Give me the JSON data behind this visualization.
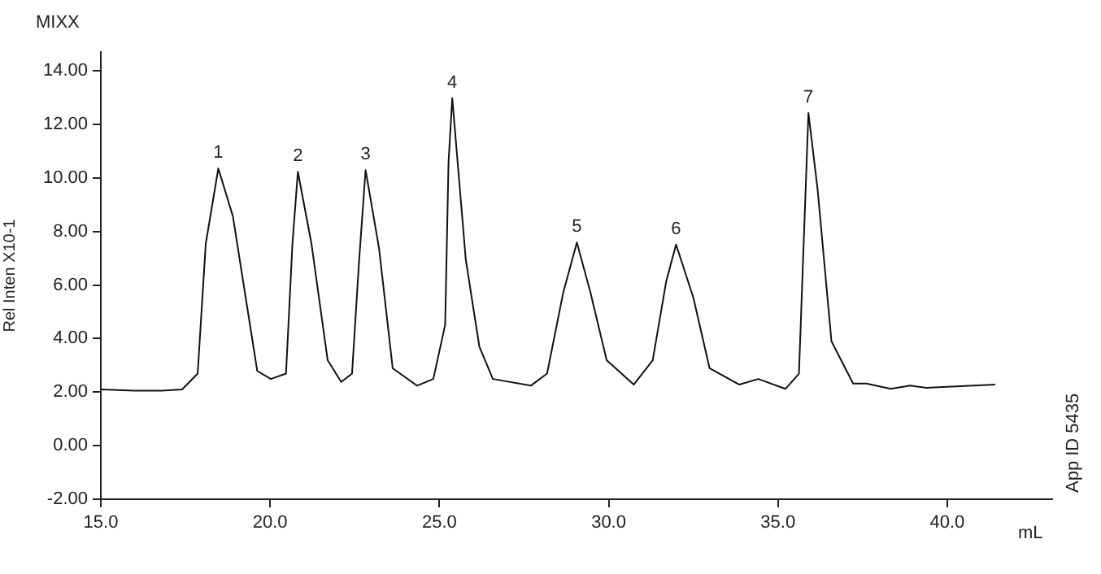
{
  "chart_data": {
    "type": "line",
    "xlabel": "mL",
    "ylabel": "Rel Inten X10-1",
    "marker": "none",
    "line_style": "solid",
    "grid": false,
    "legend": false,
    "xlim": [
      15,
      43.1
    ],
    "ylim": [
      -2,
      14.7
    ],
    "xticks": [
      {
        "value": 15,
        "label": "15.0"
      },
      {
        "value": 20,
        "label": "20.0"
      },
      {
        "value": 25,
        "label": "25.0"
      },
      {
        "value": 30,
        "label": "30.0"
      },
      {
        "value": 35,
        "label": "35.0"
      },
      {
        "value": 40,
        "label": "40.0"
      }
    ],
    "yticks": [
      {
        "value": -2,
        "label": "-2.00"
      },
      {
        "value": 0,
        "label": "0.00"
      },
      {
        "value": 2,
        "label": "2.00"
      },
      {
        "value": 4,
        "label": "4.00"
      },
      {
        "value": 6,
        "label": "6.00"
      },
      {
        "value": 8,
        "label": "8.00"
      },
      {
        "value": 10,
        "label": "10.00"
      },
      {
        "value": 12,
        "label": "12.00"
      },
      {
        "value": 14,
        "label": "14.00"
      }
    ],
    "series": [
      {
        "color": "#111111",
        "x": [
          15,
          16,
          16.8,
          17.4,
          17.86,
          18.1,
          18.47,
          18.9,
          19.62,
          20.02,
          20.47,
          20.66,
          20.82,
          21.22,
          21.7,
          22.1,
          22.42,
          22.63,
          22.82,
          23.22,
          23.62,
          24.34,
          24.82,
          25.17,
          25.27,
          25.38,
          25.78,
          26.18,
          26.58,
          27.7,
          28.18,
          28.66,
          29.06,
          29.46,
          29.94,
          30.74,
          31.3,
          31.7,
          31.99,
          32.5,
          32.98,
          33.86,
          34.42,
          35.22,
          35.62,
          35.73,
          35.9,
          36.17,
          36.58,
          37.22,
          37.61,
          38.33,
          38.9,
          39.38,
          40,
          41.42
        ],
        "values": [
          2.1,
          2.05,
          2.05,
          2.1,
          2.69,
          7.55,
          10.35,
          8.57,
          2.79,
          2.49,
          2.69,
          7.55,
          10.23,
          7.55,
          3.19,
          2.38,
          2.69,
          6.94,
          10.29,
          7.35,
          2.89,
          2.24,
          2.49,
          4.51,
          10.59,
          12.98,
          6.94,
          3.7,
          2.49,
          2.24,
          2.69,
          5.73,
          7.59,
          5.73,
          3.19,
          2.28,
          3.19,
          6.14,
          7.51,
          5.53,
          2.89,
          2.28,
          2.49,
          2.12,
          2.69,
          6.54,
          12.42,
          9.58,
          3.9,
          2.32,
          2.32,
          2.12,
          2.24,
          2.16,
          2.2,
          2.28
        ]
      }
    ],
    "annotations": [
      "MIXX",
      "App ID 5435",
      {
        "text": "1",
        "x": 18.47,
        "y": 10.35
      },
      {
        "text": "2",
        "x": 20.82,
        "y": 10.23
      },
      {
        "text": "3",
        "x": 22.82,
        "y": 10.29
      },
      {
        "text": "4",
        "x": 25.38,
        "y": 12.98
      },
      {
        "text": "5",
        "x": 29.06,
        "y": 7.59
      },
      {
        "text": "6",
        "x": 31.99,
        "y": 7.51
      },
      {
        "text": "7",
        "x": 35.9,
        "y": 12.42
      }
    ]
  }
}
